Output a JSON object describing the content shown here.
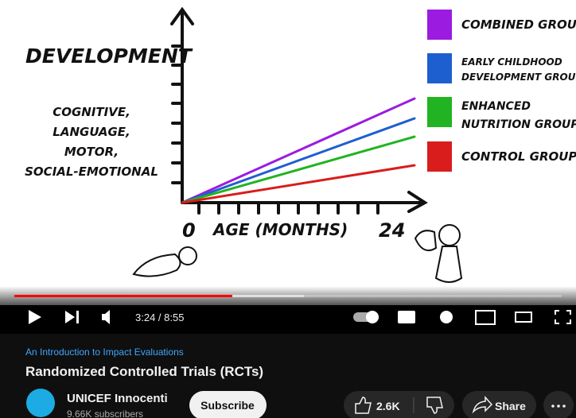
{
  "video_frame": {
    "y_axis_label": "DEVELOPMENT",
    "domains": [
      "COGNITIVE,",
      "LANGUAGE,",
      "MOTOR,",
      "SOCIAL-EMOTIONAL"
    ],
    "x_start": "0",
    "x_axis_label": "AGE (MONTHS)",
    "x_end": "24",
    "legend": [
      {
        "lines": [
          "COMBINED GROUP"
        ]
      },
      {
        "lines": [
          "EARLY CHILDHOOD",
          "DEVELOPMENT GROUP"
        ]
      },
      {
        "lines": [
          "ENHANCED",
          "NUTRITION GROUP"
        ]
      },
      {
        "lines": [
          "CONTROL GROUP"
        ]
      }
    ]
  },
  "player": {
    "time": "3:24 / 8:55"
  },
  "info": {
    "playlist": "An Introduction to Impact Evaluations",
    "title": "Randomized Controlled Trials (RCTs)",
    "channel": "UNICEF Innocenti",
    "subscribers": "9.66K subscribers",
    "subscribe": "Subscribe",
    "likes": "2.6K",
    "share": "Share"
  }
}
